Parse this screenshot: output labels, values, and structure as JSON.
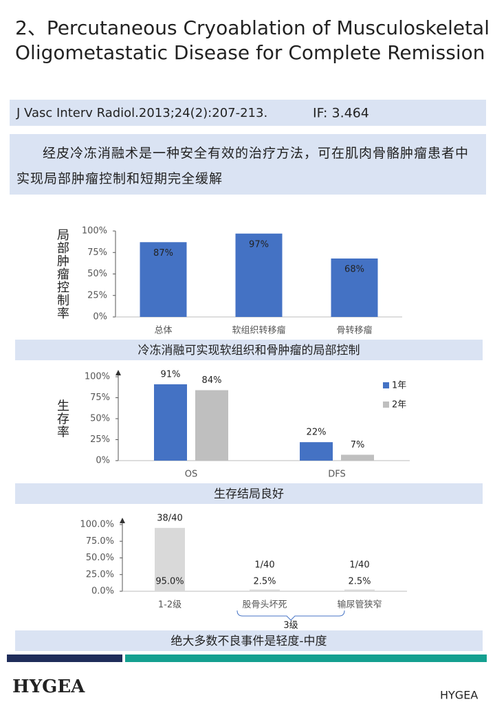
{
  "title": [
    "2、Percutaneous Cryoablation of Musculoskeletal",
    "Oligometastatic Disease for Complete Remission"
  ],
  "citation": {
    "journal": "J Vasc Interv Radiol.2013;24(2):207-213.",
    "impact": "IF: 3.464"
  },
  "summary": "经皮冷冻消融术是一种安全有效的治疗方法，可在肌肉骨骼肿瘤患者中实现局部肿瘤控制和短期完全缓解",
  "chart_data": [
    {
      "type": "bar",
      "ylabel": "局部肿瘤控制率",
      "categories": [
        "总体",
        "软组织转移瘤",
        "骨转移瘤"
      ],
      "values": [
        87,
        97,
        68
      ],
      "value_labels": [
        "87%",
        "97%",
        "68%"
      ],
      "color": "#4472c4",
      "ylim": [
        0,
        100
      ],
      "yticks": [
        {
          "value": 0,
          "label": "0%"
        },
        {
          "value": 25,
          "label": "25%"
        },
        {
          "value": 50,
          "label": "50%"
        },
        {
          "value": 75,
          "label": "75%"
        },
        {
          "value": 100,
          "label": "100%"
        }
      ],
      "caption": "冷冻消融可实现软组织和骨肿瘤的局部控制"
    },
    {
      "type": "bar",
      "ylabel": "生存率",
      "categories": [
        "OS",
        "DFS"
      ],
      "series": [
        {
          "name": "1年",
          "color": "#4472c4",
          "values": [
            91,
            22
          ],
          "value_labels": [
            "91%",
            "22%"
          ]
        },
        {
          "name": "2年",
          "color": "#bfbfbf",
          "values": [
            84,
            7
          ],
          "value_labels": [
            "84%",
            "7%"
          ]
        }
      ],
      "ylim": [
        0,
        100
      ],
      "yticks": [
        {
          "value": 0,
          "label": "0%"
        },
        {
          "value": 25,
          "label": "25%"
        },
        {
          "value": 50,
          "label": "50%"
        },
        {
          "value": 75,
          "label": "75%"
        },
        {
          "value": 100,
          "label": "100%"
        }
      ],
      "legend": "right",
      "caption": "生存结局良好"
    },
    {
      "type": "bar",
      "categories": [
        "1-2级",
        "股骨头坏死",
        "输尿管狭窄"
      ],
      "values": [
        95,
        2.5,
        2.5
      ],
      "value_labels": [
        "95.0%",
        "2.5%",
        "2.5%"
      ],
      "bar_notes": [
        "38/40",
        "1/40",
        "1/40"
      ],
      "color": "#d9d9d9",
      "ylim": [
        0,
        100
      ],
      "yticks": [
        {
          "value": 0,
          "label": "0.0%"
        },
        {
          "value": 25,
          "label": "25.0%"
        },
        {
          "value": 50,
          "label": "50.0%"
        },
        {
          "value": 75,
          "label": "75.0%"
        },
        {
          "value": 100,
          "label": "100.0%"
        }
      ],
      "group_label": "3级",
      "caption": "绝大多数不良事件是轻度-中度"
    }
  ],
  "footer": {
    "brand": "HYGEA",
    "watermark": "HYGEA"
  }
}
